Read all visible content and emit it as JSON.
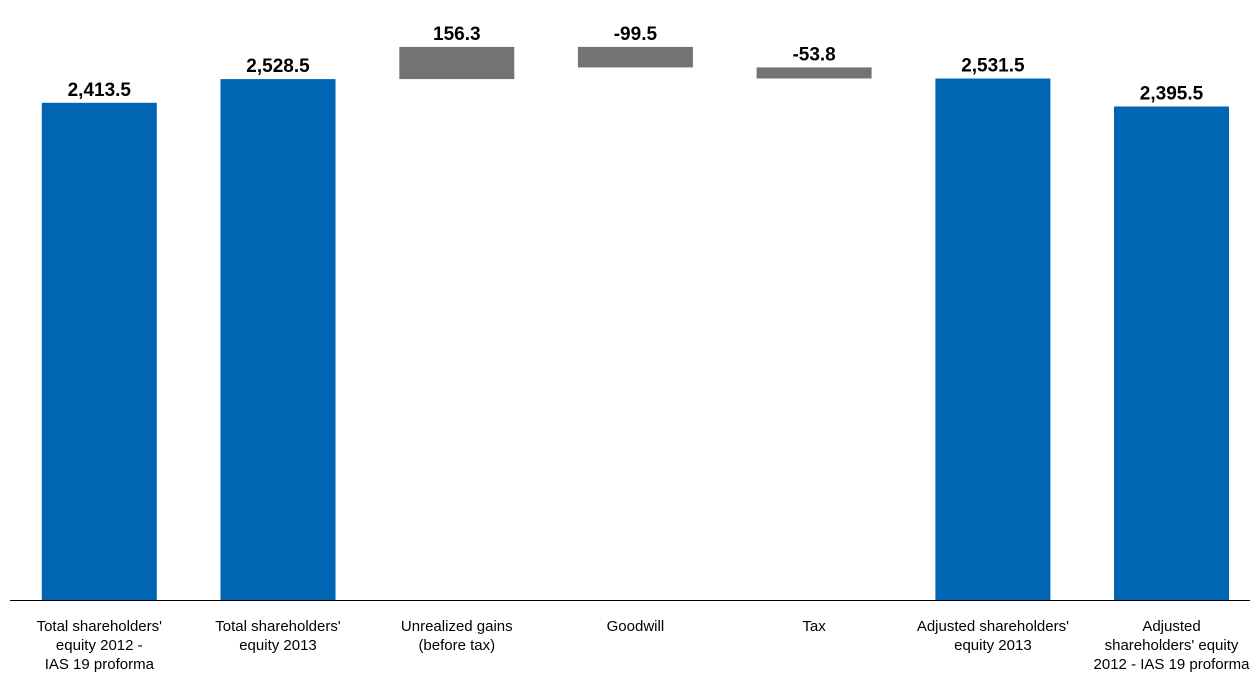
{
  "chart_data": {
    "type": "bar",
    "subtype": "waterfall",
    "title": "",
    "xlabel": "",
    "ylabel": "",
    "grid": false,
    "legend": "none",
    "categories": [
      [
        "Total shareholders'",
        "equity 2012 -",
        "IAS 19 proforma"
      ],
      [
        "Total shareholders'",
        "equity 2013"
      ],
      [
        "Unrealized gains",
        "(before tax)"
      ],
      [
        "Goodwill"
      ],
      [
        "Tax"
      ],
      [
        "Adjusted shareholders'",
        "equity 2013"
      ],
      [
        "Adjusted",
        "shareholders' equity",
        "2012 - IAS 19 proforma"
      ]
    ],
    "values": [
      2413.5,
      2528.5,
      156.3,
      -99.5,
      -53.8,
      2531.5,
      2395.5
    ],
    "value_labels": [
      "2,413.5",
      "2,528.5",
      "156.3",
      "-99.5",
      "-53.8",
      "2,531.5",
      "2,395.5"
    ],
    "kinds": [
      "total",
      "total",
      "delta",
      "delta",
      "delta",
      "total",
      "total"
    ],
    "colors": {
      "total": "#0066b3",
      "delta": "#737373",
      "axis": "#000000"
    }
  }
}
